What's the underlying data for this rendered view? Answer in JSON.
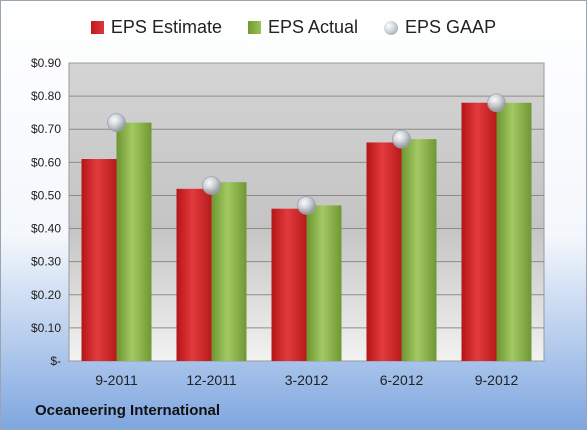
{
  "chart_data": {
    "type": "bar",
    "categories": [
      "9-2011",
      "12-2011",
      "3-2012",
      "6-2012",
      "9-2012"
    ],
    "series": [
      {
        "name": "EPS Estimate",
        "values": [
          0.61,
          0.52,
          0.46,
          0.66,
          0.78
        ],
        "color": "#cc2224",
        "kind": "bar"
      },
      {
        "name": "EPS Actual",
        "values": [
          0.72,
          0.54,
          0.47,
          0.67,
          0.78
        ],
        "color": "#86ad48",
        "kind": "bar"
      },
      {
        "name": "EPS GAAP",
        "values": [
          0.72,
          0.53,
          0.47,
          0.67,
          0.78
        ],
        "color": "#b8bec8",
        "kind": "marker"
      }
    ],
    "ylim": [
      0,
      0.9
    ],
    "yticks": [
      0,
      0.1,
      0.2,
      0.3,
      0.4,
      0.5,
      0.6,
      0.7,
      0.8,
      0.9
    ],
    "ytick_labels": [
      "$-",
      "$0.10",
      "$0.20",
      "$0.30",
      "$0.40",
      "$0.50",
      "$0.60",
      "$0.70",
      "$0.80",
      "$0.90"
    ],
    "grid": true,
    "legend": "top-center"
  },
  "legend": {
    "estimate": "EPS Estimate",
    "actual": "EPS Actual",
    "gaap": "EPS GAAP"
  },
  "footer": {
    "company": "Oceaneering International"
  }
}
